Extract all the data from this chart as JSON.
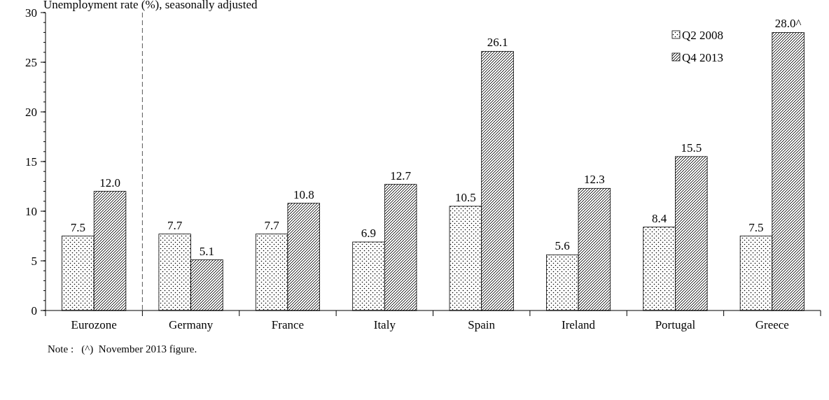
{
  "chart_data": {
    "type": "bar",
    "ylabel": "Unemployment rate (%), seasonally adjusted",
    "categories": [
      "Eurozone",
      "Germany",
      "France",
      "Italy",
      "Spain",
      "Ireland",
      "Portugal",
      "Greece"
    ],
    "series": [
      {
        "name": "Q2 2008",
        "color": "#000000",
        "values": [
          7.5,
          7.7,
          7.7,
          6.9,
          10.5,
          5.6,
          8.4,
          7.5
        ],
        "value_labels": [
          "7.5",
          "7.7",
          "7.7",
          "6.9",
          "10.5",
          "5.6",
          "8.4",
          "7.5"
        ]
      },
      {
        "name": "Q4 2013",
        "color": "#000000",
        "values": [
          12.0,
          5.1,
          10.8,
          12.7,
          26.1,
          12.3,
          15.5,
          28.0
        ],
        "value_labels": [
          "12.0",
          "5.1",
          "10.8",
          "12.7",
          "26.1",
          "12.3",
          "15.5",
          "28.0^"
        ]
      }
    ],
    "ylim": [
      0,
      30
    ],
    "yticks": [
      0,
      5,
      10,
      15,
      20,
      25,
      30
    ],
    "grid": false,
    "legend": "top right",
    "annotations": [
      "Note :   (^)  November 2013 figure."
    ]
  }
}
